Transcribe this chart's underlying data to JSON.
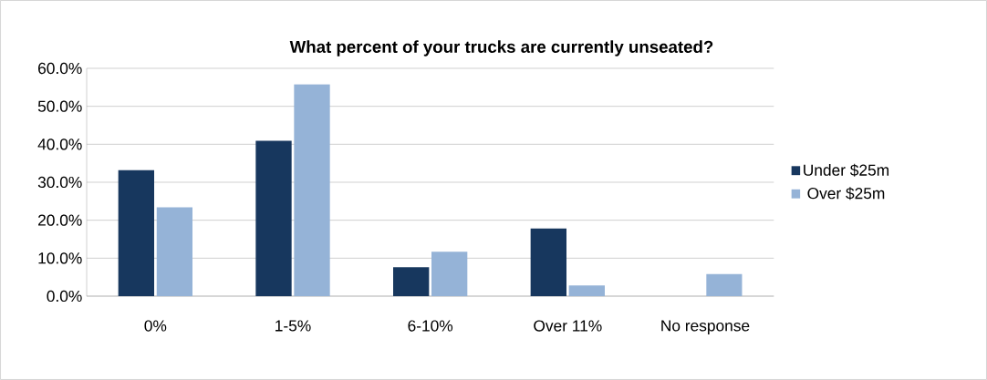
{
  "chart_data": {
    "type": "bar",
    "title": "What percent of your trucks are currently unseated?",
    "categories": [
      "0%",
      "1-5%",
      "6-10%",
      "Over 11%",
      "No response"
    ],
    "series": [
      {
        "name": "Under $25m",
        "color": "#17375e",
        "values": [
          33.2,
          40.9,
          7.6,
          17.8,
          0
        ]
      },
      {
        "name": "Over $25m",
        "color": "#95b3d7",
        "values": [
          23.4,
          55.8,
          11.7,
          2.8,
          5.8
        ]
      }
    ],
    "ylim": [
      0,
      60
    ],
    "yticks": [
      {
        "value": 0,
        "label": "0.0%"
      },
      {
        "value": 10,
        "label": "10.0%"
      },
      {
        "value": 20,
        "label": "20.0%"
      },
      {
        "value": 30,
        "label": "30.0%"
      },
      {
        "value": 40,
        "label": "40.0%"
      },
      {
        "value": 50,
        "label": "50.0%"
      },
      {
        "value": 60,
        "label": "60.0%"
      }
    ],
    "grid": "y",
    "legend": "right"
  }
}
